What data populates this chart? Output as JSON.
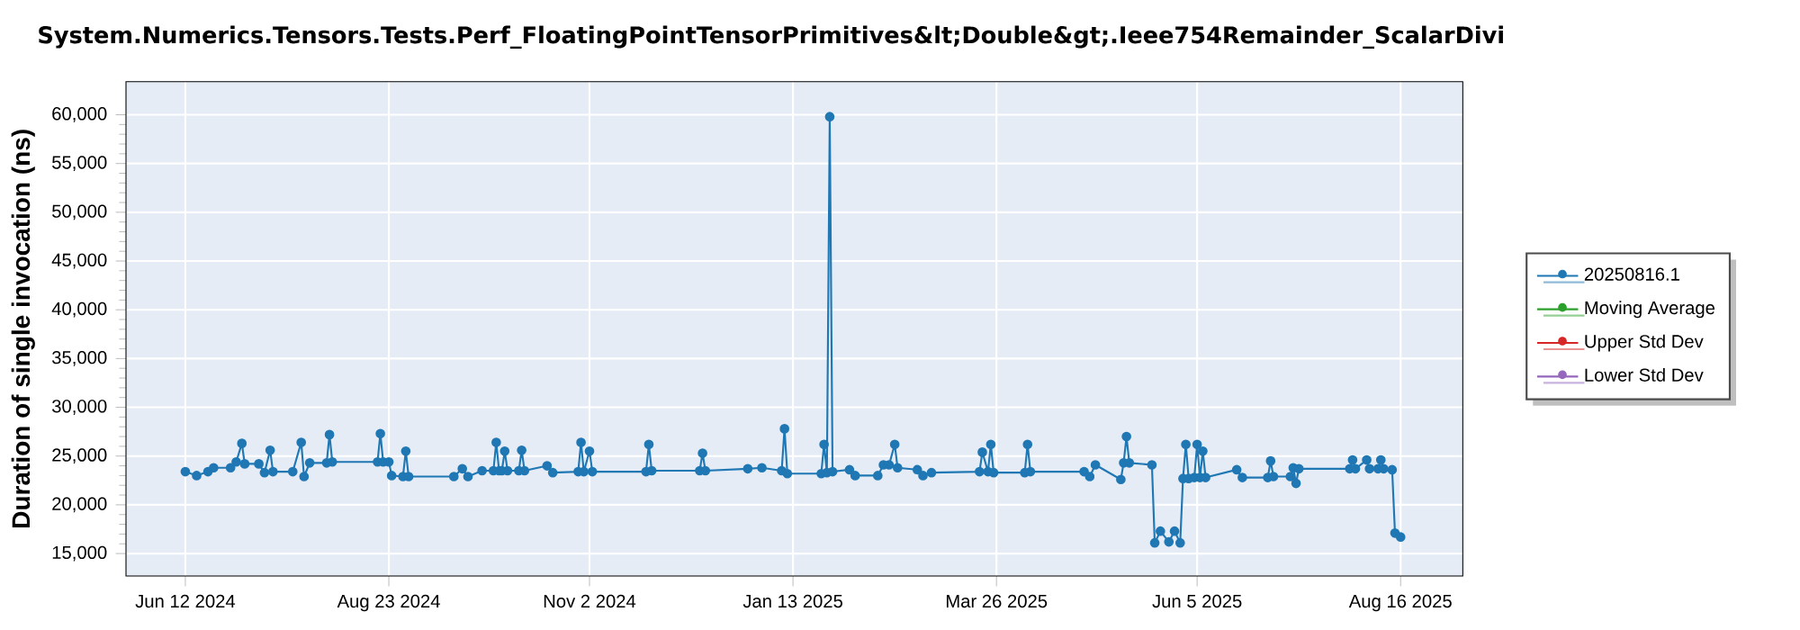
{
  "chart_data": {
    "type": "line",
    "title": "System.Numerics.Tensors.Tests.Perf_FloatingPointTensorPrimitives&lt;Double&gt;.Ieee754Remainder_ScalarDivi",
    "ylabel": "Duration of single invocation (ns)",
    "x": [
      "2024-06-12",
      "2024-06-16",
      "2024-06-20",
      "2024-06-22",
      "2024-06-28",
      "2024-06-30",
      "2024-07-02",
      "2024-07-03",
      "2024-07-08",
      "2024-07-10",
      "2024-07-12",
      "2024-07-13",
      "2024-07-20",
      "2024-07-23",
      "2024-07-24",
      "2024-07-26",
      "2024-08-01",
      "2024-08-02",
      "2024-08-03",
      "2024-08-19",
      "2024-08-20",
      "2024-08-21",
      "2024-08-23",
      "2024-08-24",
      "2024-08-28",
      "2024-08-29",
      "2024-08-30",
      "2024-09-15",
      "2024-09-18",
      "2024-09-20",
      "2024-09-25",
      "2024-09-29",
      "2024-09-30",
      "2024-10-01",
      "2024-10-02",
      "2024-10-03",
      "2024-10-04",
      "2024-10-08",
      "2024-10-09",
      "2024-10-10",
      "2024-10-18",
      "2024-10-20",
      "2024-10-29",
      "2024-10-30",
      "2024-10-31",
      "2024-11-02",
      "2024-11-03",
      "2024-11-22",
      "2024-11-23",
      "2024-11-24",
      "2024-12-11",
      "2024-12-12",
      "2024-12-13",
      "2024-12-28",
      "2025-01-02",
      "2025-01-09",
      "2025-01-10",
      "2025-01-11",
      "2025-01-23",
      "2025-01-24",
      "2025-01-25",
      "2025-01-26",
      "2025-01-27",
      "2025-02-02",
      "2025-02-04",
      "2025-02-12",
      "2025-02-14",
      "2025-02-16",
      "2025-02-18",
      "2025-02-19",
      "2025-02-26",
      "2025-02-28",
      "2025-03-03",
      "2025-03-20",
      "2025-03-21",
      "2025-03-23",
      "2025-03-24",
      "2025-03-25",
      "2025-04-05",
      "2025-04-06",
      "2025-04-07",
      "2025-04-26",
      "2025-04-28",
      "2025-04-30",
      "2025-05-09",
      "2025-05-10",
      "2025-05-11",
      "2025-05-12",
      "2025-05-20",
      "2025-05-21",
      "2025-05-23",
      "2025-05-26",
      "2025-05-28",
      "2025-05-30",
      "2025-05-31",
      "2025-06-01",
      "2025-06-02",
      "2025-06-04",
      "2025-06-05",
      "2025-06-06",
      "2025-06-07",
      "2025-06-08",
      "2025-06-19",
      "2025-06-21",
      "2025-06-30",
      "2025-07-01",
      "2025-07-02",
      "2025-07-08",
      "2025-07-09",
      "2025-07-10",
      "2025-07-11",
      "2025-07-29",
      "2025-07-30",
      "2025-07-31",
      "2025-08-04",
      "2025-08-05",
      "2025-08-08",
      "2025-08-09",
      "2025-08-10",
      "2025-08-13",
      "2025-08-14",
      "2025-08-16"
    ],
    "series": [
      {
        "name": "20250816.1",
        "color": "#1f77b4",
        "values": [
          23400,
          23000,
          23400,
          23800,
          23800,
          24400,
          26300,
          24200,
          24200,
          23300,
          25600,
          23400,
          23400,
          26400,
          22900,
          24300,
          24300,
          27200,
          24400,
          24400,
          27300,
          24400,
          24400,
          23000,
          22900,
          25500,
          22900,
          22900,
          23700,
          22900,
          23500,
          23500,
          26400,
          23500,
          23500,
          25500,
          23500,
          23500,
          25600,
          23500,
          24000,
          23300,
          23400,
          26400,
          23400,
          25500,
          23400,
          23400,
          26200,
          23500,
          23500,
          25300,
          23500,
          23700,
          23800,
          23500,
          27800,
          23200,
          23200,
          26200,
          23300,
          59800,
          23400,
          23600,
          23000,
          23000,
          24100,
          24100,
          26200,
          23800,
          23600,
          23000,
          23300,
          23400,
          25400,
          23400,
          26200,
          23300,
          23300,
          26200,
          23400,
          23400,
          22900,
          24100,
          22600,
          24300,
          27000,
          24300,
          24100,
          16100,
          17300,
          16200,
          17300,
          16100,
          22700,
          26200,
          22700,
          22800,
          26200,
          22800,
          25500,
          22800,
          23600,
          22800,
          22800,
          24500,
          22900,
          22900,
          23800,
          22200,
          23700,
          23700,
          24600,
          23700,
          24600,
          23700,
          23700,
          24600,
          23700,
          23600,
          17100,
          16700
        ]
      },
      {
        "name": "Moving Average",
        "color": "#2ca02c",
        "values": [
          null,
          null,
          null,
          null,
          null,
          null,
          null,
          null,
          null,
          null,
          null,
          null,
          null,
          null,
          null,
          null,
          null,
          null,
          null,
          null,
          null,
          null,
          null,
          null,
          null,
          null,
          null,
          null,
          null,
          null,
          null,
          null,
          null,
          null,
          null,
          null,
          null,
          null,
          null,
          null,
          null,
          null,
          null,
          null,
          null,
          null,
          null,
          null,
          null,
          null,
          null,
          null,
          null,
          null,
          null,
          null,
          null,
          null,
          null,
          null,
          null,
          null,
          null,
          null,
          null,
          null,
          null,
          null,
          null,
          null,
          null,
          null,
          null,
          null,
          null,
          null,
          null,
          null,
          null,
          null,
          null,
          null,
          null,
          null,
          null,
          null,
          null,
          null,
          null,
          null,
          null,
          null,
          null,
          null,
          null,
          null,
          null,
          null,
          null,
          null,
          null,
          null,
          null,
          null,
          null,
          null,
          null,
          null,
          null,
          null,
          null,
          null,
          null,
          null,
          null,
          null,
          null,
          null,
          null,
          null,
          null,
          null
        ]
      },
      {
        "name": "Upper Std Dev",
        "color": "#d62728",
        "values": [
          null,
          null,
          null,
          null,
          null,
          null,
          null,
          null,
          null,
          null,
          null,
          null,
          null,
          null,
          null,
          null,
          null,
          null,
          null,
          null,
          null,
          null,
          null,
          null,
          null,
          null,
          null,
          null,
          null,
          null,
          null,
          null,
          null,
          null,
          null,
          null,
          null,
          null,
          null,
          null,
          null,
          null,
          null,
          null,
          null,
          null,
          null,
          null,
          null,
          null,
          null,
          null,
          null,
          null,
          null,
          null,
          null,
          null,
          null,
          null,
          null,
          null,
          null,
          null,
          null,
          null,
          null,
          null,
          null,
          null,
          null,
          null,
          null,
          null,
          null,
          null,
          null,
          null,
          null,
          null,
          null,
          null,
          null,
          null,
          null,
          null,
          null,
          null,
          null,
          null,
          null,
          null,
          null,
          null,
          null,
          null,
          null,
          null,
          null,
          null,
          null,
          null,
          null,
          null,
          null,
          null,
          null,
          null,
          null,
          null,
          null,
          null,
          null,
          null,
          null,
          null,
          null,
          null,
          null,
          null,
          null,
          null
        ]
      },
      {
        "name": "Lower Std Dev",
        "color": "#9467bd",
        "values": [
          null,
          null,
          null,
          null,
          null,
          null,
          null,
          null,
          null,
          null,
          null,
          null,
          null,
          null,
          null,
          null,
          null,
          null,
          null,
          null,
          null,
          null,
          null,
          null,
          null,
          null,
          null,
          null,
          null,
          null,
          null,
          null,
          null,
          null,
          null,
          null,
          null,
          null,
          null,
          null,
          null,
          null,
          null,
          null,
          null,
          null,
          null,
          null,
          null,
          null,
          null,
          null,
          null,
          null,
          null,
          null,
          null,
          null,
          null,
          null,
          null,
          null,
          null,
          null,
          null,
          null,
          null,
          null,
          null,
          null,
          null,
          null,
          null,
          null,
          null,
          null,
          null,
          null,
          null,
          null,
          null,
          null,
          null,
          null,
          null,
          null,
          null,
          null,
          null,
          null,
          null,
          null,
          null,
          null,
          null,
          null,
          null,
          null,
          null,
          null,
          null,
          null,
          null,
          null,
          null,
          null,
          null,
          null,
          null,
          null,
          null,
          null,
          null,
          null,
          null,
          null,
          null,
          null,
          null,
          null,
          null,
          null
        ]
      }
    ],
    "xlim": [
      "2024-05-22",
      "2025-09-07"
    ],
    "xticks": [
      {
        "value": "2024-06-12",
        "label": "Jun 12 2024"
      },
      {
        "value": "2024-08-23",
        "label": "Aug 23 2024"
      },
      {
        "value": "2024-11-02",
        "label": "Nov 2 2024"
      },
      {
        "value": "2025-01-13",
        "label": "Jan 13 2025"
      },
      {
        "value": "2025-03-26",
        "label": "Mar 26 2025"
      },
      {
        "value": "2025-06-05",
        "label": "Jun 5 2025"
      },
      {
        "value": "2025-08-16",
        "label": "Aug 16 2025"
      }
    ],
    "ylim": [
      12700,
      63400
    ],
    "yticks": [
      {
        "value": 15000,
        "label": "15,000"
      },
      {
        "value": 20000,
        "label": "20,000"
      },
      {
        "value": 25000,
        "label": "25,000"
      },
      {
        "value": 30000,
        "label": "30,000"
      },
      {
        "value": 35000,
        "label": "35,000"
      },
      {
        "value": 40000,
        "label": "40,000"
      },
      {
        "value": 45000,
        "label": "45,000"
      },
      {
        "value": 50000,
        "label": "50,000"
      },
      {
        "value": 55000,
        "label": "55,000"
      },
      {
        "value": 60000,
        "label": "60,000"
      }
    ],
    "grid": true,
    "legend": "right",
    "marker": "circle",
    "line_style": "solid"
  }
}
